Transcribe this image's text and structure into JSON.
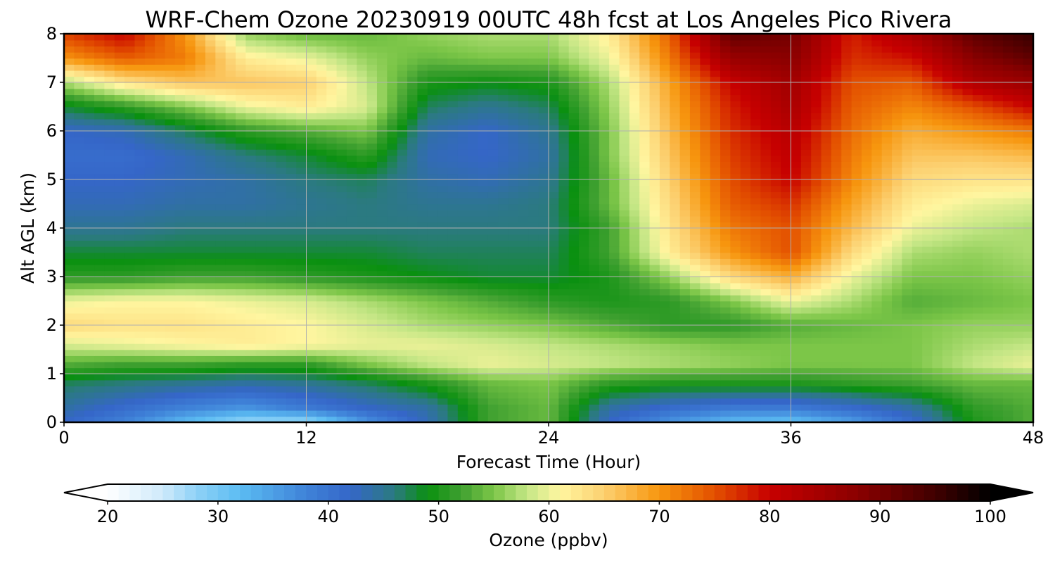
{
  "chart_data": {
    "type": "heatmap",
    "title": "WRF-Chem Ozone  20230919 00UTC 48h fcst at Los Angeles Pico Rivera",
    "xlabel": "Forecast Time (Hour)",
    "ylabel": "Alt AGL (km)",
    "xlim": [
      0,
      48
    ],
    "ylim": [
      0,
      8
    ],
    "xticks": [
      0,
      12,
      24,
      36,
      48
    ],
    "yticks": [
      0,
      1,
      2,
      3,
      4,
      5,
      6,
      7,
      8
    ],
    "grid": true,
    "colorbar": {
      "label": "Ozone  (ppbv)",
      "range": [
        20,
        100
      ],
      "ticks": [
        20,
        30,
        40,
        50,
        60,
        70,
        80,
        90,
        100
      ],
      "extend": "both",
      "under_color": "#ffffff",
      "over_color": "#000000",
      "colormap": [
        [
          20,
          "#ffffff"
        ],
        [
          25,
          "#cfeafa"
        ],
        [
          28,
          "#8fd2f7"
        ],
        [
          32,
          "#5bbcf2"
        ],
        [
          38,
          "#3f82d8"
        ],
        [
          42,
          "#3566c8"
        ],
        [
          46,
          "#2b7a80"
        ],
        [
          49,
          "#0a9010"
        ],
        [
          52,
          "#3fa030"
        ],
        [
          55,
          "#7cc648"
        ],
        [
          58,
          "#c4e685"
        ],
        [
          61,
          "#fff6a0"
        ],
        [
          65,
          "#fcd070"
        ],
        [
          70,
          "#f7960e"
        ],
        [
          75,
          "#e35000"
        ],
        [
          80,
          "#c70000"
        ],
        [
          88,
          "#8a0000"
        ],
        [
          95,
          "#400000"
        ],
        [
          100,
          "#000000"
        ]
      ]
    },
    "x": [
      0,
      3,
      6,
      9,
      12,
      15,
      18,
      21,
      24,
      27,
      30,
      33,
      36,
      39,
      42,
      45,
      48
    ],
    "y": [
      0,
      0.3,
      0.8,
      1.2,
      1.6,
      2.0,
      2.5,
      3.0,
      3.5,
      4.0,
      4.5,
      5.0,
      5.5,
      6.0,
      6.5,
      7.0,
      7.5,
      8.0
    ],
    "values": [
      [
        42,
        38,
        32,
        27,
        27,
        36,
        43,
        52,
        54,
        42,
        36,
        32,
        31,
        35,
        41,
        50,
        53
      ],
      [
        44,
        41,
        38,
        36,
        39,
        42,
        44,
        52,
        54,
        44,
        41,
        39,
        39,
        41,
        44,
        51,
        53
      ],
      [
        47,
        46,
        45,
        44,
        45,
        47,
        50,
        54,
        55,
        51,
        50,
        50,
        50,
        51,
        52,
        54,
        54
      ],
      [
        53,
        52,
        52,
        51,
        51,
        55,
        58,
        60,
        59,
        58,
        57,
        56,
        55,
        55,
        55,
        58,
        60
      ],
      [
        59,
        60,
        61,
        62,
        61,
        60,
        60,
        59,
        58,
        57,
        56,
        55,
        55,
        55,
        55,
        57,
        58
      ],
      [
        64,
        63,
        63,
        62,
        61,
        59,
        57,
        56,
        55,
        53,
        51,
        51,
        53,
        54,
        55,
        56,
        56
      ],
      [
        60,
        61,
        61,
        60,
        59,
        57,
        55,
        53,
        51,
        50,
        51,
        55,
        60,
        57,
        53,
        54,
        55
      ],
      [
        51,
        51,
        52,
        52,
        51,
        50,
        49,
        48,
        48,
        50,
        56,
        64,
        68,
        60,
        55,
        55,
        56
      ],
      [
        48,
        48,
        48,
        48,
        48,
        48,
        47,
        47,
        47,
        52,
        62,
        70,
        75,
        64,
        57,
        56,
        57
      ],
      [
        45,
        45,
        46,
        46,
        46,
        46,
        46,
        46,
        46,
        52,
        63,
        72,
        75,
        67,
        60,
        58,
        57
      ],
      [
        43,
        43,
        44,
        44,
        45,
        46,
        45,
        45,
        46,
        54,
        64,
        74,
        77,
        69,
        62,
        60,
        59
      ],
      [
        42,
        42,
        43,
        44,
        46,
        47,
        44,
        43,
        45,
        54,
        65,
        75,
        80,
        71,
        64,
        63,
        63
      ],
      [
        41,
        41,
        43,
        46,
        48,
        51,
        43,
        42,
        44,
        55,
        66,
        76,
        81,
        72,
        66,
        66,
        67
      ],
      [
        42,
        43,
        47,
        51,
        53,
        55,
        44,
        42,
        45,
        55,
        67,
        77,
        82,
        73,
        68,
        70,
        72
      ],
      [
        48,
        51,
        55,
        60,
        62,
        59,
        47,
        45,
        47,
        56,
        68,
        78,
        84,
        74,
        71,
        75,
        80
      ],
      [
        57,
        63,
        66,
        66,
        65,
        58,
        50,
        49,
        50,
        57,
        69,
        80,
        85,
        75,
        74,
        83,
        86
      ],
      [
        70,
        74,
        72,
        62,
        60,
        56,
        54,
        55,
        55,
        60,
        72,
        86,
        88,
        77,
        79,
        88,
        92
      ],
      [
        76,
        80,
        70,
        56,
        54,
        54,
        56,
        57,
        57,
        62,
        74,
        92,
        90,
        78,
        84,
        92,
        96
      ]
    ]
  }
}
